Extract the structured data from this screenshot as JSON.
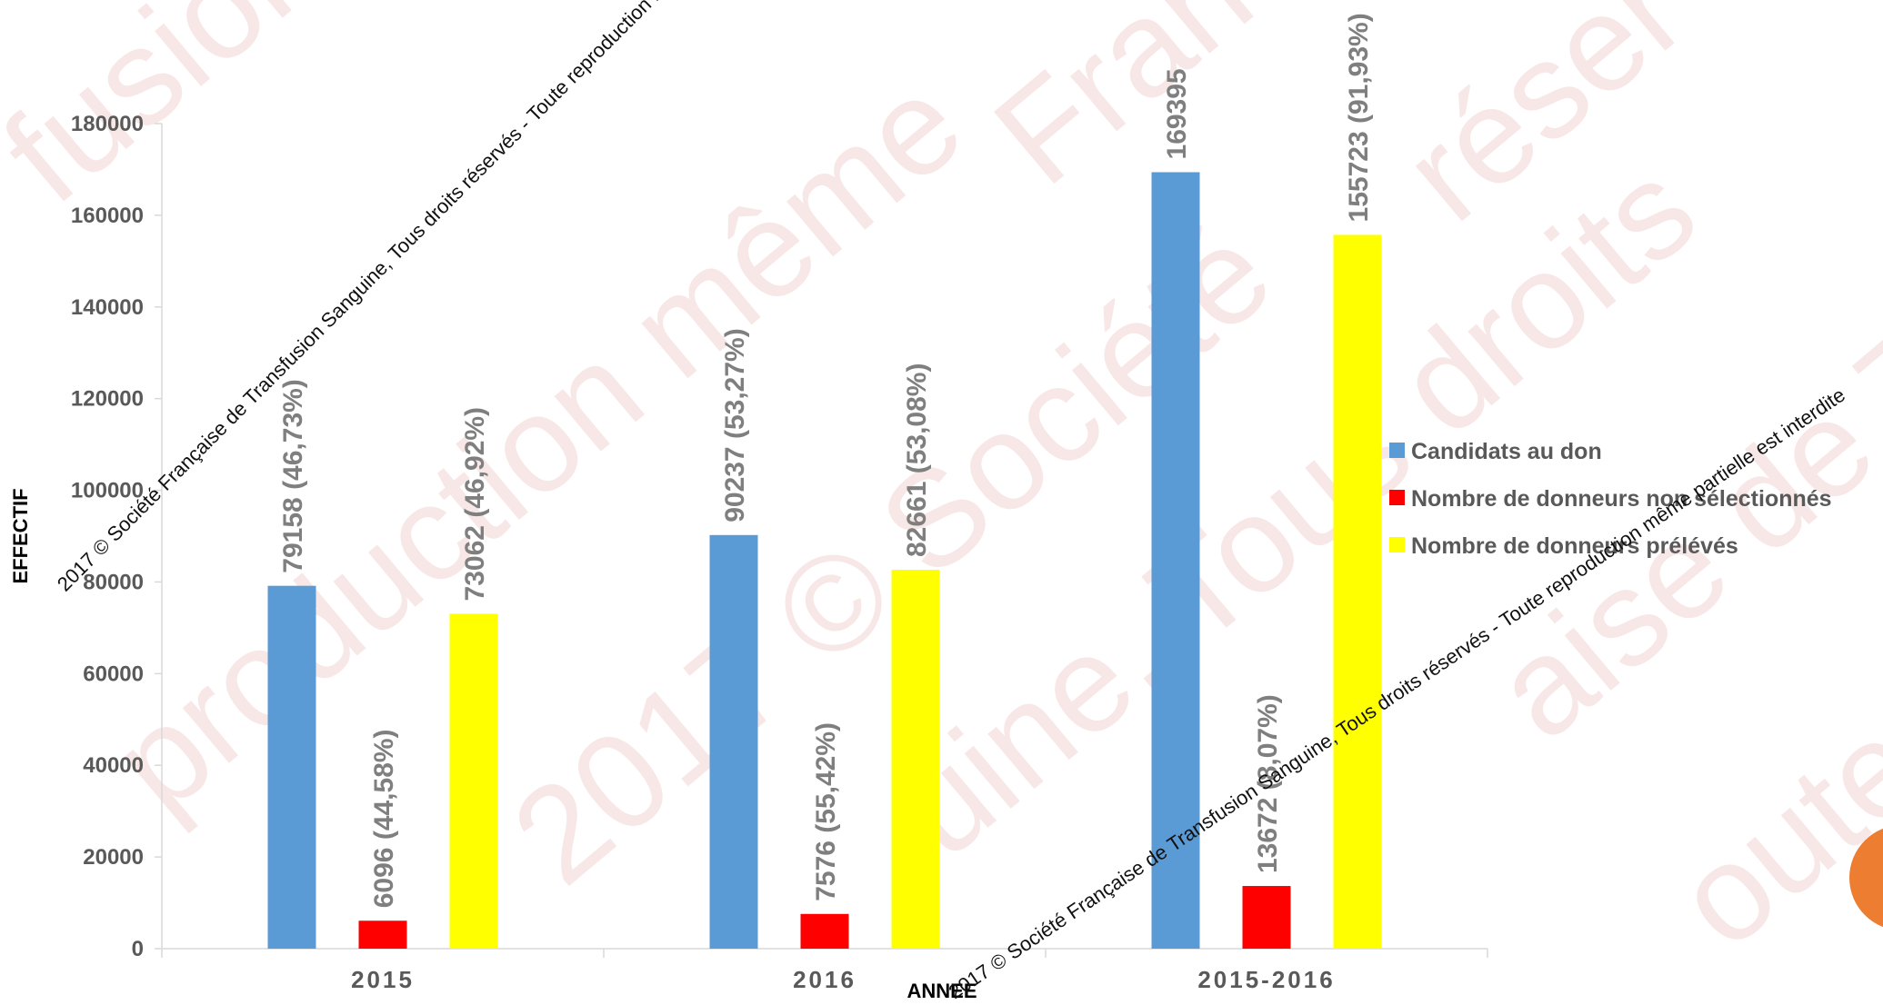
{
  "chart_data": {
    "type": "bar",
    "categories": [
      "2015",
      "2016",
      "2015-2016"
    ],
    "series": [
      {
        "name": "Candidats au don",
        "color": "#5b9bd5",
        "values": [
          79158,
          90237,
          169395
        ],
        "labels": [
          "79158 (46,73%)",
          "90237 (53,27%)",
          "169395"
        ]
      },
      {
        "name": "Nombre de donneurs non sélectionnés",
        "color": "#ff0000",
        "values": [
          6096,
          7576,
          13672
        ],
        "labels": [
          "6096 (44,58%)",
          "7576 (55,42%)",
          "13672 (8,07%)"
        ]
      },
      {
        "name": "Nombre de donneurs prélévés",
        "color": "#ffff00",
        "values": [
          73062,
          82661,
          155723
        ],
        "labels": [
          "73062 (46,92%)",
          "82661 (53,08%)",
          "155723 (91,93%)"
        ]
      }
    ],
    "ylim": [
      0,
      180000
    ],
    "yticks": [
      0,
      20000,
      40000,
      60000,
      80000,
      100000,
      120000,
      140000,
      160000,
      180000
    ],
    "ylabel": "EFFECTIF",
    "xlabel": "ANNEE",
    "legend_position": "right",
    "grid": false
  },
  "watermark": {
    "text": "2017 © Société Française de Transfusion Sanguine, Tous droits réservés - Toute reproduction même partielle est interdite",
    "big_words": [
      "fusion S",
      "production même",
      "2017 © Société",
      "uine, Tous droits",
      "aise de Tra",
      "oute ré",
      "Fran",
      "réser"
    ]
  }
}
